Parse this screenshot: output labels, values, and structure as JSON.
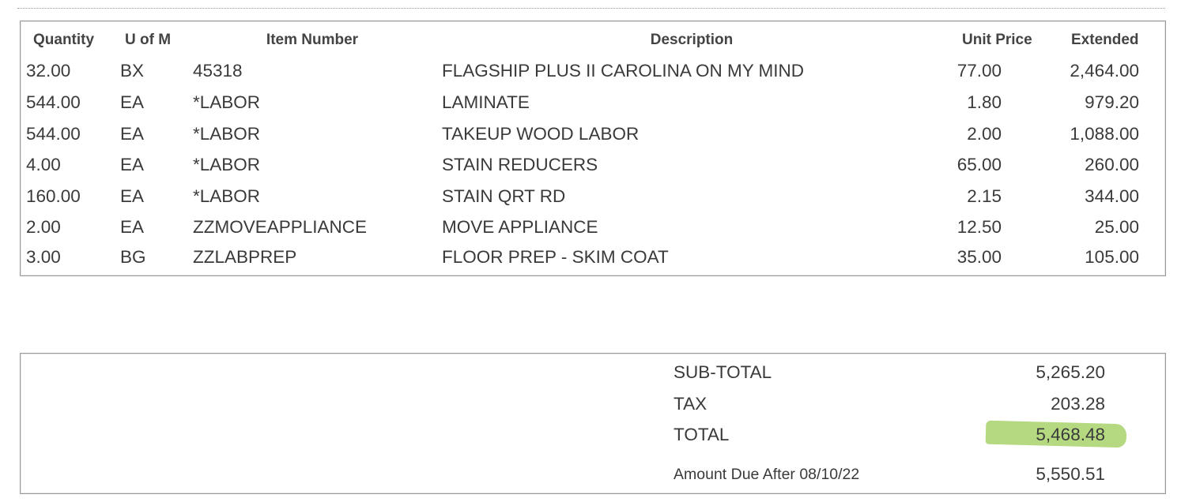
{
  "table": {
    "headers": [
      "Quantity",
      "U of M",
      "Item Number",
      "Description",
      "Unit Price",
      "Extended"
    ],
    "rows": [
      [
        "32.00",
        "BX",
        "45318",
        "FLAGSHIP PLUS II CAROLINA ON MY MIND",
        "77.00",
        "2,464.00"
      ],
      [
        "544.00",
        "EA",
        "*LABOR",
        "LAMINATE",
        "1.80",
        "979.20"
      ],
      [
        "544.00",
        "EA",
        "*LABOR",
        "TAKEUP WOOD LABOR",
        "2.00",
        "1,088.00"
      ],
      [
        "4.00",
        "EA",
        "*LABOR",
        "STAIN REDUCERS",
        "65.00",
        "260.00"
      ],
      [
        "160.00",
        "EA",
        "*LABOR",
        "STAIN QRT RD",
        "2.15",
        "344.00"
      ],
      [
        "2.00",
        "EA",
        "ZZMOVEAPPLIANCE",
        "MOVE APPLIANCE",
        "12.50",
        "25.00"
      ],
      [
        "3.00",
        "BG",
        "ZZLABPREP",
        "FLOOR PREP - SKIM COAT",
        "35.00",
        "105.00"
      ]
    ]
  },
  "summary": {
    "subtotal_label": "SUB-TOTAL",
    "subtotal": "5,265.20",
    "tax_label": "TAX",
    "tax": "203.28",
    "total_label": "TOTAL",
    "total": "5,468.48",
    "due_after_label": "Amount Due After 08/10/22",
    "due_after": "5,550.51",
    "highlight_color": "#9ccc55"
  }
}
